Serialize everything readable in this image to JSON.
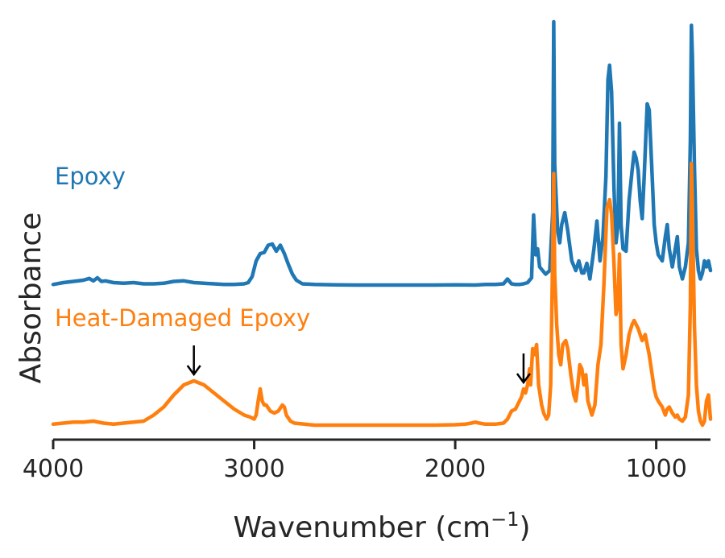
{
  "chart_data": {
    "type": "line",
    "xlabel": "Wavenumber (cm",
    "xlabel_sup": "−1",
    "xlabel_close": ")",
    "ylabel": "Absorbance",
    "xlim": [
      4000,
      730
    ],
    "x_inverted": true,
    "xticks": [
      "4000",
      "3000",
      "2000",
      "1000"
    ],
    "y_ticks_shown": false,
    "grid": false,
    "series": [
      {
        "name": "Epoxy",
        "color": "#1f77b4",
        "points": [
          [
            4000,
            0.005
          ],
          [
            3950,
            0.02
          ],
          [
            3900,
            0.03
          ],
          [
            3850,
            0.04
          ],
          [
            3820,
            0.055
          ],
          [
            3800,
            0.035
          ],
          [
            3780,
            0.06
          ],
          [
            3760,
            0.03
          ],
          [
            3740,
            0.035
          ],
          [
            3700,
            0.02
          ],
          [
            3650,
            0.015
          ],
          [
            3600,
            0.02
          ],
          [
            3550,
            0.01
          ],
          [
            3500,
            0.01
          ],
          [
            3450,
            0.015
          ],
          [
            3400,
            0.03
          ],
          [
            3350,
            0.035
          ],
          [
            3300,
            0.02
          ],
          [
            3250,
            0.015
          ],
          [
            3200,
            0.01
          ],
          [
            3150,
            0.005
          ],
          [
            3100,
            0.005
          ],
          [
            3050,
            0.01
          ],
          [
            3030,
            0.02
          ],
          [
            3010,
            0.07
          ],
          [
            2990,
            0.2
          ],
          [
            2970,
            0.26
          ],
          [
            2950,
            0.27
          ],
          [
            2930,
            0.33
          ],
          [
            2910,
            0.34
          ],
          [
            2890,
            0.28
          ],
          [
            2870,
            0.33
          ],
          [
            2850,
            0.26
          ],
          [
            2830,
            0.17
          ],
          [
            2810,
            0.09
          ],
          [
            2790,
            0.04
          ],
          [
            2760,
            0.01
          ],
          [
            2700,
            0.005
          ],
          [
            2600,
            0.002
          ],
          [
            2500,
            0.0
          ],
          [
            2400,
            0.0
          ],
          [
            2300,
            0.0
          ],
          [
            2200,
            0.0
          ],
          [
            2100,
            0.0
          ],
          [
            2000,
            0.002
          ],
          [
            1900,
            0.0
          ],
          [
            1850,
            0.005
          ],
          [
            1800,
            0.005
          ],
          [
            1760,
            0.01
          ],
          [
            1740,
            0.05
          ],
          [
            1720,
            0.01
          ],
          [
            1700,
            0.005
          ],
          [
            1680,
            0.005
          ],
          [
            1660,
            0.01
          ],
          [
            1640,
            0.02
          ],
          [
            1620,
            0.06
          ],
          [
            1610,
            0.58
          ],
          [
            1600,
            0.25
          ],
          [
            1590,
            0.3
          ],
          [
            1580,
            0.15
          ],
          [
            1565,
            0.12
          ],
          [
            1550,
            0.09
          ],
          [
            1530,
            0.12
          ],
          [
            1515,
            0.6
          ],
          [
            1510,
            2.18
          ],
          [
            1505,
            1.0
          ],
          [
            1500,
            0.8
          ],
          [
            1490,
            0.45
          ],
          [
            1480,
            0.35
          ],
          [
            1470,
            0.5
          ],
          [
            1455,
            0.6
          ],
          [
            1440,
            0.45
          ],
          [
            1420,
            0.2
          ],
          [
            1400,
            0.12
          ],
          [
            1385,
            0.2
          ],
          [
            1370,
            0.1
          ],
          [
            1360,
            0.1
          ],
          [
            1345,
            0.18
          ],
          [
            1330,
            0.05
          ],
          [
            1310,
            0.3
          ],
          [
            1295,
            0.53
          ],
          [
            1280,
            0.2
          ],
          [
            1265,
            0.4
          ],
          [
            1250,
            0.9
          ],
          [
            1240,
            1.7
          ],
          [
            1232,
            1.82
          ],
          [
            1222,
            1.6
          ],
          [
            1210,
            0.8
          ],
          [
            1200,
            0.35
          ],
          [
            1190,
            0.5
          ],
          [
            1183,
            1.34
          ],
          [
            1175,
            0.5
          ],
          [
            1165,
            0.3
          ],
          [
            1150,
            0.28
          ],
          [
            1135,
            0.7
          ],
          [
            1120,
            0.95
          ],
          [
            1110,
            1.1
          ],
          [
            1100,
            1.05
          ],
          [
            1090,
            0.95
          ],
          [
            1080,
            0.7
          ],
          [
            1070,
            0.55
          ],
          [
            1060,
            0.9
          ],
          [
            1045,
            1.5
          ],
          [
            1035,
            1.45
          ],
          [
            1020,
            0.9
          ],
          [
            1010,
            0.5
          ],
          [
            1000,
            0.35
          ],
          [
            990,
            0.25
          ],
          [
            970,
            0.2
          ],
          [
            955,
            0.4
          ],
          [
            945,
            0.5
          ],
          [
            935,
            0.3
          ],
          [
            920,
            0.15
          ],
          [
            905,
            0.3
          ],
          [
            895,
            0.4
          ],
          [
            885,
            0.15
          ],
          [
            870,
            0.05
          ],
          [
            855,
            0.15
          ],
          [
            840,
            0.35
          ],
          [
            830,
            1.2
          ],
          [
            825,
            2.15
          ],
          [
            820,
            1.9
          ],
          [
            810,
            1.0
          ],
          [
            800,
            0.3
          ],
          [
            790,
            0.12
          ],
          [
            780,
            0.05
          ],
          [
            770,
            0.1
          ],
          [
            760,
            0.2
          ],
          [
            750,
            0.15
          ],
          [
            740,
            0.2
          ],
          [
            730,
            0.12
          ]
        ]
      },
      {
        "name": "Heat-Damaged Epoxy",
        "color": "#ff7f0e",
        "points": [
          [
            4000,
            0.005
          ],
          [
            3950,
            0.01
          ],
          [
            3900,
            0.015
          ],
          [
            3850,
            0.015
          ],
          [
            3800,
            0.02
          ],
          [
            3750,
            0.01
          ],
          [
            3700,
            0.005
          ],
          [
            3650,
            0.01
          ],
          [
            3600,
            0.015
          ],
          [
            3550,
            0.02
          ],
          [
            3500,
            0.05
          ],
          [
            3450,
            0.09
          ],
          [
            3400,
            0.15
          ],
          [
            3350,
            0.2
          ],
          [
            3300,
            0.22
          ],
          [
            3250,
            0.2
          ],
          [
            3200,
            0.16
          ],
          [
            3150,
            0.12
          ],
          [
            3100,
            0.08
          ],
          [
            3050,
            0.05
          ],
          [
            3020,
            0.04
          ],
          [
            3000,
            0.03
          ],
          [
            2990,
            0.05
          ],
          [
            2980,
            0.12
          ],
          [
            2970,
            0.18
          ],
          [
            2960,
            0.12
          ],
          [
            2950,
            0.1
          ],
          [
            2940,
            0.1
          ],
          [
            2920,
            0.07
          ],
          [
            2900,
            0.06
          ],
          [
            2880,
            0.07
          ],
          [
            2860,
            0.1
          ],
          [
            2850,
            0.09
          ],
          [
            2840,
            0.05
          ],
          [
            2820,
            0.02
          ],
          [
            2800,
            0.01
          ],
          [
            2750,
            0.005
          ],
          [
            2700,
            0.0
          ],
          [
            2600,
            0.0
          ],
          [
            2500,
            0.0
          ],
          [
            2400,
            0.0
          ],
          [
            2300,
            0.0
          ],
          [
            2200,
            0.0
          ],
          [
            2100,
            0.0
          ],
          [
            2000,
            0.002
          ],
          [
            1950,
            0.005
          ],
          [
            1920,
            0.01
          ],
          [
            1900,
            0.015
          ],
          [
            1880,
            0.01
          ],
          [
            1850,
            0.005
          ],
          [
            1800,
            0.005
          ],
          [
            1760,
            0.01
          ],
          [
            1740,
            0.03
          ],
          [
            1720,
            0.07
          ],
          [
            1700,
            0.08
          ],
          [
            1690,
            0.1
          ],
          [
            1680,
            0.12
          ],
          [
            1670,
            0.14
          ],
          [
            1660,
            0.18
          ],
          [
            1650,
            0.16
          ],
          [
            1640,
            0.2
          ],
          [
            1630,
            0.28
          ],
          [
            1625,
            0.2
          ],
          [
            1615,
            0.38
          ],
          [
            1605,
            0.35
          ],
          [
            1595,
            0.4
          ],
          [
            1585,
            0.2
          ],
          [
            1570,
            0.1
          ],
          [
            1560,
            0.06
          ],
          [
            1545,
            0.03
          ],
          [
            1535,
            0.05
          ],
          [
            1525,
            0.2
          ],
          [
            1515,
            0.85
          ],
          [
            1510,
            1.25
          ],
          [
            1505,
            0.75
          ],
          [
            1495,
            0.5
          ],
          [
            1485,
            0.35
          ],
          [
            1475,
            0.3
          ],
          [
            1465,
            0.4
          ],
          [
            1450,
            0.42
          ],
          [
            1440,
            0.38
          ],
          [
            1425,
            0.25
          ],
          [
            1410,
            0.15
          ],
          [
            1400,
            0.12
          ],
          [
            1390,
            0.2
          ],
          [
            1380,
            0.3
          ],
          [
            1370,
            0.28
          ],
          [
            1360,
            0.2
          ],
          [
            1350,
            0.25
          ],
          [
            1340,
            0.12
          ],
          [
            1320,
            0.05
          ],
          [
            1305,
            0.1
          ],
          [
            1290,
            0.3
          ],
          [
            1275,
            0.4
          ],
          [
            1260,
            0.7
          ],
          [
            1245,
            1.08
          ],
          [
            1232,
            1.12
          ],
          [
            1222,
            1.05
          ],
          [
            1210,
            0.8
          ],
          [
            1200,
            0.55
          ],
          [
            1190,
            0.6
          ],
          [
            1183,
            0.85
          ],
          [
            1175,
            0.4
          ],
          [
            1165,
            0.28
          ],
          [
            1150,
            0.35
          ],
          [
            1135,
            0.45
          ],
          [
            1120,
            0.5
          ],
          [
            1110,
            0.52
          ],
          [
            1100,
            0.5
          ],
          [
            1090,
            0.48
          ],
          [
            1080,
            0.45
          ],
          [
            1070,
            0.42
          ],
          [
            1055,
            0.45
          ],
          [
            1045,
            0.4
          ],
          [
            1035,
            0.35
          ],
          [
            1020,
            0.25
          ],
          [
            1010,
            0.18
          ],
          [
            1000,
            0.14
          ],
          [
            990,
            0.12
          ],
          [
            970,
            0.09
          ],
          [
            955,
            0.05
          ],
          [
            945,
            0.08
          ],
          [
            935,
            0.09
          ],
          [
            920,
            0.06
          ],
          [
            905,
            0.04
          ],
          [
            895,
            0.05
          ],
          [
            885,
            0.03
          ],
          [
            870,
            0.02
          ],
          [
            855,
            0.04
          ],
          [
            840,
            0.15
          ],
          [
            830,
            0.6
          ],
          [
            825,
            1.3
          ],
          [
            820,
            1.1
          ],
          [
            810,
            0.5
          ],
          [
            800,
            0.2
          ],
          [
            790,
            0.07
          ],
          [
            780,
            0.02
          ],
          [
            770,
            0.0
          ],
          [
            760,
            0.02
          ],
          [
            750,
            0.12
          ],
          [
            740,
            0.15
          ],
          [
            730,
            0.03
          ]
        ]
      }
    ],
    "arrows": [
      {
        "series": 1,
        "x": 3300
      },
      {
        "series": 1,
        "x": 1660
      }
    ]
  }
}
